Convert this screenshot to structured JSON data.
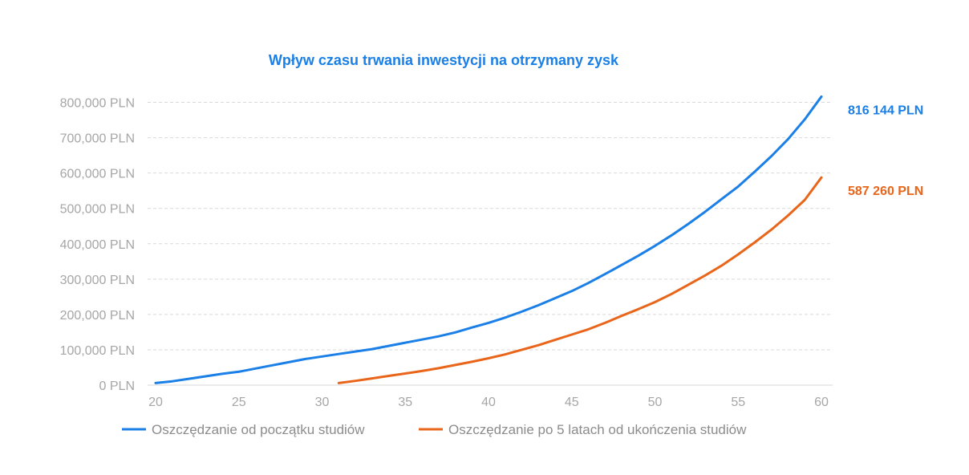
{
  "colors": {
    "series_1": "#1a7fe6",
    "series_2": "#e8651a",
    "title": "#1a7fe6",
    "grid": "#d9d9d9",
    "tick": "#a6a6a6"
  },
  "chart_data": {
    "type": "line",
    "title": "Wpływ czasu trwania inwestycji na otrzymany zysk",
    "xlabel": "",
    "ylabel": "",
    "xlim": [
      20,
      60
    ],
    "ylim": [
      0,
      800000
    ],
    "grid": true,
    "legend": "bottom-left",
    "x_ticks": [
      20,
      25,
      30,
      35,
      40,
      45,
      50,
      55,
      60
    ],
    "y_ticks": [
      {
        "value": 0,
        "label": "0 PLN"
      },
      {
        "value": 100000,
        "label": "100,000 PLN"
      },
      {
        "value": 200000,
        "label": "200,000 PLN"
      },
      {
        "value": 300000,
        "label": "300,000 PLN"
      },
      {
        "value": 400000,
        "label": "400,000 PLN"
      },
      {
        "value": 500000,
        "label": "500,000 PLN"
      },
      {
        "value": 600000,
        "label": "600,000 PLN"
      },
      {
        "value": 700000,
        "label": "700,000 PLN"
      },
      {
        "value": 800000,
        "label": "800,000 PLN"
      }
    ],
    "series": [
      {
        "name": "Oszczędzanie od początku studiów",
        "color": "#1a7fe6",
        "end_label": "816 144 PLN",
        "x": [
          20,
          21,
          22,
          23,
          24,
          25,
          26,
          27,
          28,
          29,
          30,
          31,
          32,
          33,
          34,
          35,
          36,
          37,
          38,
          39,
          40,
          41,
          42,
          43,
          44,
          45,
          46,
          47,
          48,
          49,
          50,
          51,
          52,
          53,
          54,
          55,
          56,
          57,
          58,
          59,
          60
        ],
        "values": [
          6000,
          11000,
          18000,
          25000,
          32000,
          38000,
          47000,
          56000,
          65000,
          74000,
          81000,
          88000,
          95000,
          102000,
          111000,
          120000,
          129000,
          138000,
          149000,
          163000,
          176000,
          191000,
          208000,
          226000,
          246000,
          266000,
          289000,
          314000,
          340000,
          366000,
          394000,
          424000,
          456000,
          490000,
          526000,
          562000,
          604000,
          648000,
          696000,
          752000,
          816144
        ]
      },
      {
        "name": "Oszczędzanie po 5 latach od ukończenia studiów",
        "color": "#e8651a",
        "end_label": "587 260 PLN",
        "x": [
          31,
          32,
          33,
          34,
          35,
          36,
          37,
          38,
          39,
          40,
          41,
          42,
          43,
          44,
          45,
          46,
          47,
          48,
          49,
          50,
          51,
          52,
          53,
          54,
          55,
          56,
          57,
          58,
          59,
          60
        ],
        "values": [
          6000,
          12000,
          19000,
          26000,
          33000,
          40000,
          48000,
          57000,
          66000,
          76000,
          87000,
          100000,
          113000,
          128000,
          143000,
          158000,
          176000,
          196000,
          215000,
          235000,
          258000,
          284000,
          310000,
          338000,
          370000,
          404000,
          440000,
          480000,
          524000,
          587260
        ]
      }
    ]
  }
}
